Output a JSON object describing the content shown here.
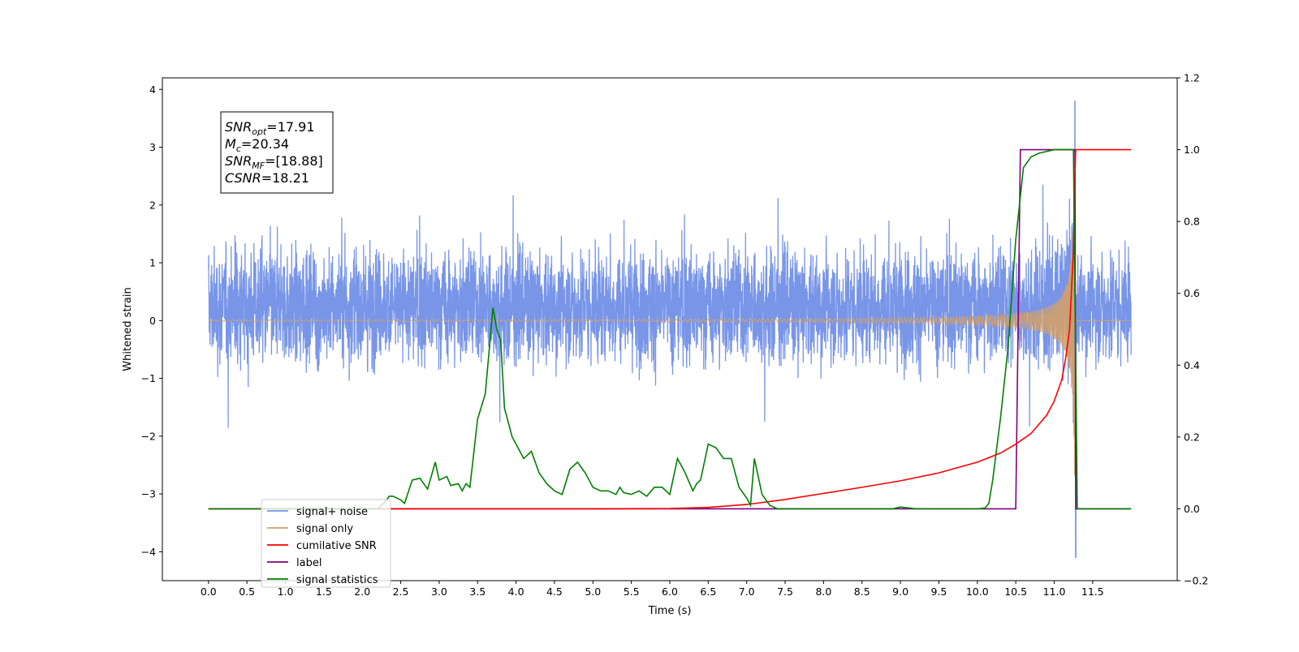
{
  "chart_data": {
    "type": "line",
    "title": "",
    "xlabel": "Time (s)",
    "ylabel": "Whitened strain",
    "xlim": [
      -0.6,
      12.6
    ],
    "ylim": [
      -4.5,
      4.2
    ],
    "y2lim": [
      -0.2,
      1.2
    ],
    "x_ticks": [
      "0.0",
      "0.5",
      "1.0",
      "1.5",
      "2.0",
      "2.5",
      "3.0",
      "3.5",
      "4.0",
      "4.5",
      "5.0",
      "5.5",
      "6.0",
      "6.5",
      "7.0",
      "7.5",
      "8.0",
      "8.5",
      "9.0",
      "9.5",
      "10.0",
      "10.5",
      "11.0",
      "11.5"
    ],
    "y_ticks": [
      "4",
      "3",
      "2",
      "1",
      "0",
      "−1",
      "−2",
      "−3",
      "−4"
    ],
    "y2_ticks": [
      "1.2",
      "1.0",
      "0.8",
      "0.6",
      "0.4",
      "0.2",
      "0.0",
      "−0.2"
    ],
    "grid": false,
    "legend_position": "lower-left",
    "annotation": {
      "lines": [
        {
          "sym": "SNR",
          "sub": "opt",
          "val": "=17.91"
        },
        {
          "sym": "M",
          "sub": "c",
          "val": "=20.34"
        },
        {
          "sym": "SNR",
          "sub": "MF",
          "val": "=[18.88]"
        },
        {
          "sym": "CSNR",
          "sub": "",
          "val": "=18.21"
        }
      ]
    },
    "series": [
      {
        "name": "signal+ noise",
        "color": "#7895e8",
        "axis": "left",
        "description_values": {
          "x_start": 0.0,
          "x_end": 12.0,
          "typical_range": [
            -2.0,
            2.3
          ],
          "peak_max": 3.8,
          "peak_min": -4.1,
          "peak_max_at": 11.27,
          "peak_min_at": 11.27
        }
      },
      {
        "name": "signal only",
        "color": "#d1a06c",
        "axis": "left",
        "x_chirp_start": 6.5,
        "x_merger": 11.27,
        "peak_amplitude": 3.4
      },
      {
        "name": "cumilative SNR",
        "color": "#ff0000",
        "axis": "right",
        "x": [
          0.0,
          5.0,
          6.0,
          6.5,
          7.0,
          7.5,
          8.0,
          8.5,
          9.0,
          9.5,
          10.0,
          10.3,
          10.5,
          10.7,
          10.9,
          11.0,
          11.1,
          11.15,
          11.2,
          11.25,
          11.27,
          11.28,
          12.0
        ],
        "y": [
          0.0,
          0.0,
          0.001,
          0.004,
          0.012,
          0.026,
          0.043,
          0.06,
          0.078,
          0.1,
          0.13,
          0.155,
          0.18,
          0.21,
          0.26,
          0.3,
          0.36,
          0.42,
          0.5,
          0.72,
          0.93,
          1.0,
          1.0
        ]
      },
      {
        "name": "label",
        "color": "#800080",
        "axis": "right",
        "x": [
          0.0,
          10.5,
          10.56,
          11.27,
          11.28,
          12.0
        ],
        "y": [
          0.0,
          0.0,
          1.0,
          1.0,
          0.0,
          0.0
        ]
      },
      {
        "name": "signal statistics",
        "color": "#008000",
        "axis": "right",
        "x": [
          0.0,
          2.2,
          2.3,
          2.35,
          2.4,
          2.5,
          2.55,
          2.65,
          2.75,
          2.8,
          2.85,
          2.95,
          3.0,
          3.1,
          3.15,
          3.25,
          3.3,
          3.35,
          3.4,
          3.5,
          3.6,
          3.7,
          3.75,
          3.8,
          3.85,
          3.95,
          4.0,
          4.1,
          4.2,
          4.3,
          4.4,
          4.5,
          4.6,
          4.7,
          4.8,
          4.9,
          5.0,
          5.1,
          5.2,
          5.3,
          5.35,
          5.4,
          5.5,
          5.6,
          5.7,
          5.8,
          5.9,
          6.0,
          6.1,
          6.2,
          6.3,
          6.35,
          6.4,
          6.5,
          6.6,
          6.7,
          6.8,
          6.9,
          7.0,
          7.05,
          7.1,
          7.15,
          7.2,
          7.3,
          7.4,
          7.5,
          8.0,
          8.5,
          8.9,
          9.0,
          9.2,
          10.0,
          10.1,
          10.15,
          10.2,
          10.3,
          10.4,
          10.5,
          10.6,
          10.7,
          10.8,
          11.0,
          11.1,
          11.2,
          11.25,
          11.3,
          11.4,
          12.0
        ],
        "y": [
          0.0,
          0.0,
          0.02,
          0.035,
          0.035,
          0.025,
          0.015,
          0.08,
          0.085,
          0.07,
          0.055,
          0.13,
          0.08,
          0.09,
          0.065,
          0.07,
          0.05,
          0.07,
          0.06,
          0.25,
          0.32,
          0.56,
          0.5,
          0.47,
          0.28,
          0.2,
          0.18,
          0.14,
          0.16,
          0.1,
          0.07,
          0.05,
          0.04,
          0.11,
          0.13,
          0.1,
          0.06,
          0.05,
          0.05,
          0.04,
          0.06,
          0.045,
          0.04,
          0.05,
          0.035,
          0.06,
          0.06,
          0.04,
          0.14,
          0.1,
          0.05,
          0.07,
          0.08,
          0.18,
          0.17,
          0.14,
          0.14,
          0.06,
          0.03,
          0.01,
          0.14,
          0.09,
          0.04,
          0.01,
          0.0,
          0.0,
          0.0,
          0.0,
          0.0,
          0.005,
          0.0,
          0.0,
          0.002,
          0.015,
          0.08,
          0.25,
          0.45,
          0.75,
          0.95,
          0.98,
          0.99,
          1.0,
          1.0,
          1.0,
          1.0,
          0.0,
          0.0,
          0.0
        ]
      }
    ]
  }
}
